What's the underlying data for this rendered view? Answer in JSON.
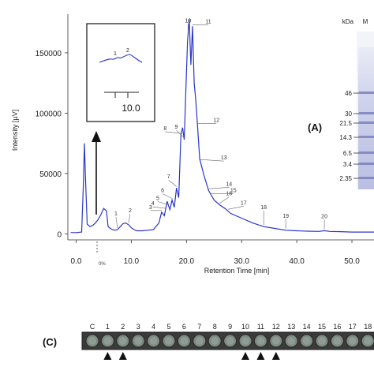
{
  "chart_data": {
    "type": "line",
    "xlabel": "Retention Time [min]",
    "ylabel": "Intensity [µV]",
    "xlim": [
      -1.5,
      54
    ],
    "ylim": [
      -5000,
      182000
    ],
    "x_ticks": [
      0,
      10,
      20,
      30,
      40,
      50
    ],
    "x_tick_labels": [
      "0.0",
      "10.0",
      "20.0",
      "30.0",
      "40.0",
      "50.0"
    ],
    "y_ticks": [
      0,
      50000,
      100000,
      150000
    ],
    "y_tick_labels": [
      "0",
      "50000",
      "100000",
      "150000"
    ],
    "series": [
      {
        "x": [
          -1,
          0,
          1,
          1.3,
          1.5,
          1.7,
          2,
          2.5,
          3,
          3.5,
          4,
          4.5,
          5,
          5.5,
          5.8,
          6.2,
          6.6,
          7,
          7.5,
          8,
          8.5,
          9,
          9.5,
          10,
          10.5,
          11,
          12,
          13,
          14,
          15,
          15.5,
          16,
          16.5,
          17,
          17.4,
          17.8,
          18.2,
          18.6,
          19,
          19.3,
          19.6,
          19.9,
          20.2,
          20.5,
          20.8,
          21.1,
          21.4,
          21.7,
          22,
          22.4,
          22.8,
          23.2,
          23.6,
          24,
          24.5,
          25,
          26,
          27,
          28,
          30,
          32,
          34,
          36,
          38,
          40,
          42,
          44,
          45,
          46,
          48,
          50,
          52,
          54
        ],
        "y": [
          1000,
          1000,
          1500,
          40000,
          75000,
          45000,
          8000,
          6000,
          7000,
          9000,
          12000,
          16000,
          21000,
          19000,
          6000,
          4500,
          3500,
          3000,
          3500,
          6000,
          8500,
          9000,
          7500,
          5000,
          3500,
          2500,
          2500,
          3000,
          3500,
          9000,
          18000,
          15000,
          27000,
          20000,
          28000,
          22000,
          38000,
          30000,
          82000,
          88000,
          78000,
          120000,
          160000,
          178000,
          140000,
          172000,
          125000,
          110000,
          90000,
          62000,
          55000,
          48000,
          42000,
          36000,
          32000,
          28000,
          24000,
          21000,
          17000,
          13000,
          9000,
          6000,
          4500,
          3000,
          2500,
          2200,
          2000,
          2600,
          2000,
          1800,
          1500,
          1500,
          1500
        ],
        "color": "#2a36c8"
      }
    ],
    "peaks": [
      {
        "label": "1",
        "x": 7.5
      },
      {
        "label": "2",
        "x": 9.5
      },
      {
        "label": "3",
        "x": 15.5
      },
      {
        "label": "4",
        "x": 16.2
      },
      {
        "label": "5",
        "x": 16.8
      },
      {
        "label": "6",
        "x": 17.4
      },
      {
        "label": "7",
        "x": 18.2
      },
      {
        "label": "8",
        "x": 19
      },
      {
        "label": "9",
        "x": 19.6
      },
      {
        "label": "10",
        "x": 20.3
      },
      {
        "label": "11",
        "x": 21.1
      },
      {
        "label": "12",
        "x": 22
      },
      {
        "label": "13",
        "x": 22.5
      },
      {
        "label": "14",
        "x": 24
      },
      {
        "label": "15",
        "x": 24.5
      },
      {
        "label": "16",
        "x": 26
      },
      {
        "label": "17",
        "x": 27.5
      },
      {
        "label": "18",
        "x": 34
      },
      {
        "label": "19",
        "x": 38
      },
      {
        "label": "20",
        "x": 45
      }
    ],
    "annotations": [
      "0%"
    ],
    "inset": {
      "peak_labels": [
        "1",
        "2"
      ],
      "tick_label": "10.0"
    }
  },
  "gel": {
    "header": "kDa",
    "lane_label": "M",
    "markers": [
      "46",
      "30",
      "21.5",
      "14.3",
      "6.5",
      "3.4",
      "2.35"
    ]
  },
  "panel_a_label": "(A)",
  "panel_c": {
    "label": "(C)",
    "wells": [
      "C",
      "1",
      "2",
      "3",
      "4",
      "5",
      "6",
      "7",
      "8",
      "9",
      "10",
      "11",
      "12",
      "13",
      "14",
      "15",
      "16",
      "17",
      "18"
    ],
    "marked_wells": [
      "1",
      "2",
      "10",
      "11",
      "12"
    ]
  }
}
